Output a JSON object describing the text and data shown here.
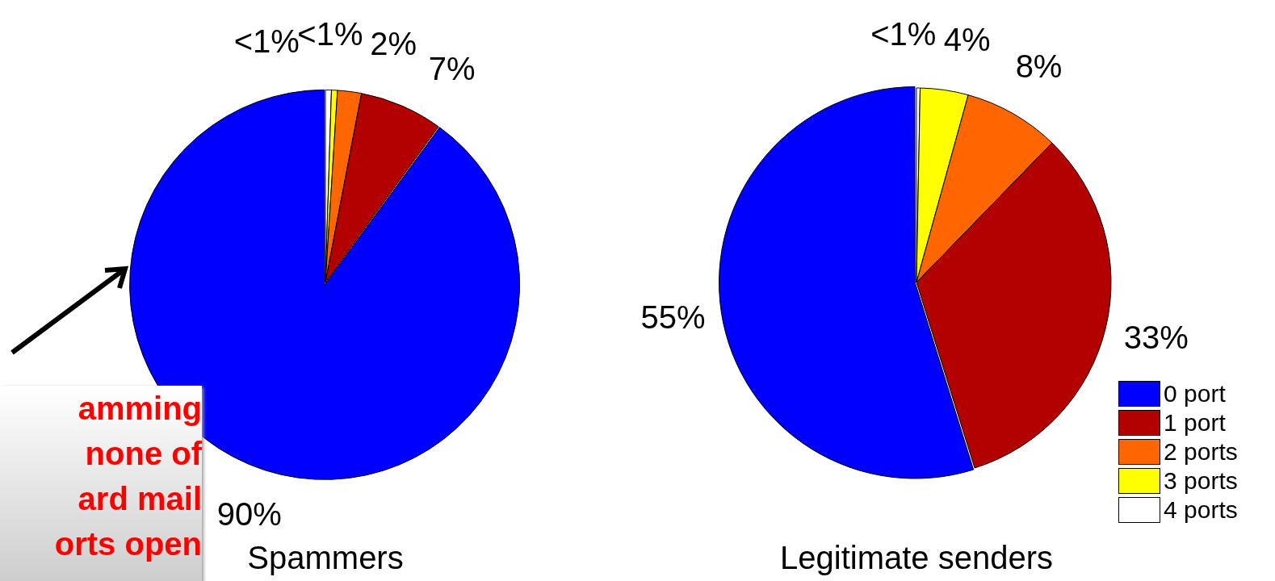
{
  "chart_data": [
    {
      "type": "pie",
      "title": "Spammers",
      "categories": [
        null,
        null,
        null,
        null,
        null
      ],
      "values": [
        90,
        7,
        2,
        0.5,
        0.5
      ],
      "colors": [
        "#0000ff",
        "#b30000",
        "#ff6600",
        "#ffff00",
        "#ffffff"
      ],
      "value_labels": [
        "90%",
        "7%",
        "2%",
        "<1%",
        "<1%"
      ],
      "legend": false,
      "annotations": [
        "amming\nnone of\nard mail\norts open"
      ]
    },
    {
      "type": "pie",
      "title": "Legitimate senders",
      "categories": [
        "0 port",
        "1 port",
        "2 ports",
        "3 ports",
        "4 ports"
      ],
      "values": [
        55,
        33,
        8,
        4,
        0.3
      ],
      "colors": [
        "#0000ff",
        "#b30000",
        "#ff6600",
        "#ffff00",
        "#ffffff"
      ],
      "value_labels": [
        "55%",
        "33%",
        "8%",
        "4%",
        "<1%"
      ],
      "legend": "bottom right"
    }
  ]
}
